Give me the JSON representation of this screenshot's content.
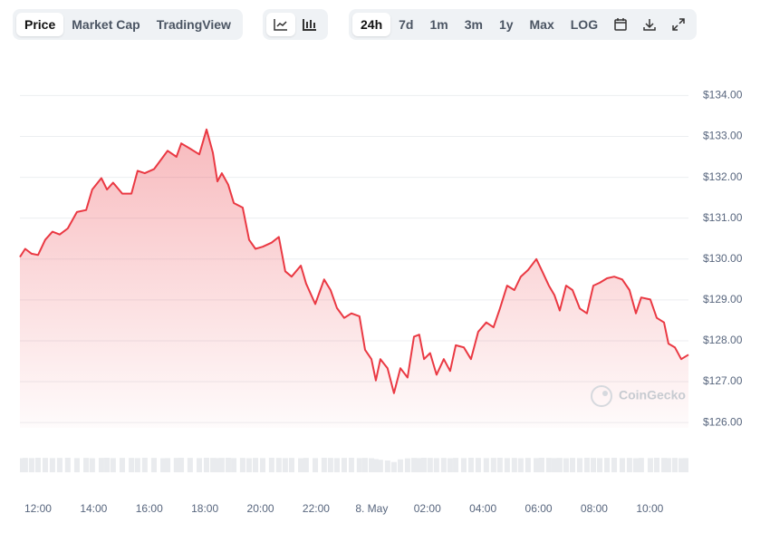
{
  "toolbar": {
    "views": [
      "Price",
      "Market Cap",
      "TradingView"
    ],
    "ranges": [
      "24h",
      "7d",
      "1m",
      "3m",
      "1y",
      "Max",
      "LOG"
    ]
  },
  "chart_data": {
    "type": "area",
    "watermark": "CoinGecko",
    "x": [
      11.35,
      11.54,
      11.77,
      12.0,
      12.26,
      12.52,
      12.78,
      13.07,
      13.4,
      13.73,
      13.95,
      14.28,
      14.48,
      14.7,
      15.03,
      15.36,
      15.58,
      15.84,
      16.17,
      16.5,
      16.66,
      16.98,
      17.15,
      17.47,
      17.8,
      18.06,
      18.29,
      18.45,
      18.61,
      18.84,
      19.04,
      19.36,
      19.59,
      19.82,
      20.08,
      20.4,
      20.66,
      20.89,
      21.12,
      21.45,
      21.64,
      21.97,
      22.29,
      22.52,
      22.75,
      23.01,
      23.27,
      23.56,
      23.76,
      23.99,
      24.15,
      24.31,
      24.57,
      24.8,
      25.03,
      25.29,
      25.52,
      25.71,
      25.88,
      26.1,
      26.33,
      26.59,
      26.82,
      27.02,
      27.31,
      27.57,
      27.83,
      28.12,
      28.38,
      28.61,
      28.87,
      29.13,
      29.36,
      29.62,
      29.92,
      30.11,
      30.37,
      30.57,
      30.76,
      30.99,
      31.22,
      31.48,
      31.74,
      31.97,
      32.2,
      32.46,
      32.72,
      33.01,
      33.27,
      33.5,
      33.69,
      34.02,
      34.25,
      34.51,
      34.67,
      34.9,
      35.13,
      35.39
    ],
    "series": [
      {
        "color": "#ea3943",
        "values": [
          130.05,
          130.25,
          130.13,
          130.1,
          130.47,
          130.67,
          130.6,
          130.75,
          131.15,
          131.2,
          131.7,
          131.98,
          131.7,
          131.87,
          131.6,
          131.6,
          132.16,
          132.1,
          132.2,
          132.5,
          132.65,
          132.5,
          132.83,
          132.7,
          132.56,
          133.17,
          132.6,
          131.9,
          132.1,
          131.82,
          131.37,
          131.26,
          130.47,
          130.25,
          130.3,
          130.4,
          130.54,
          129.7,
          129.57,
          129.84,
          129.4,
          128.9,
          129.5,
          129.24,
          128.8,
          128.56,
          128.67,
          128.6,
          127.78,
          127.55,
          127.03,
          127.55,
          127.33,
          126.72,
          127.33,
          127.1,
          128.1,
          128.15,
          127.55,
          127.7,
          127.17,
          127.55,
          127.26,
          127.89,
          127.84,
          127.55,
          128.22,
          128.45,
          128.33,
          128.79,
          129.35,
          129.24,
          129.57,
          129.73,
          130.0,
          129.73,
          129.35,
          129.12,
          128.74,
          129.35,
          129.24,
          128.79,
          128.67,
          129.35,
          129.42,
          129.53,
          129.57,
          129.5,
          129.24,
          128.67,
          129.06,
          129.01,
          128.56,
          128.45,
          127.93,
          127.84,
          127.55,
          127.66
        ]
      }
    ],
    "volume": {
      "color": "#e9ebee",
      "values": [
        96,
        98,
        97,
        99,
        98,
        97,
        98,
        99,
        97,
        98,
        96,
        98,
        99,
        97,
        98,
        98,
        97,
        99,
        98,
        96,
        97,
        98,
        99,
        98,
        97,
        99,
        98,
        97,
        98,
        99,
        97,
        98,
        96,
        98,
        97,
        99,
        98,
        97,
        98,
        96,
        98,
        97,
        99,
        98,
        97,
        98,
        99,
        97,
        98,
        96,
        90,
        85,
        80,
        70,
        88,
        95,
        98,
        97,
        99,
        98,
        97,
        98,
        96,
        98,
        97,
        99,
        98,
        97,
        98,
        99,
        97,
        98,
        96,
        98,
        97,
        99,
        98,
        97,
        98,
        96,
        98,
        97,
        99,
        98,
        97,
        98,
        99,
        97,
        98,
        96,
        98,
        97,
        99,
        98,
        97,
        98,
        96,
        97
      ]
    },
    "xlim": [
      11.35,
      35.39
    ],
    "xticks": [
      {
        "value": 12,
        "label": "12:00"
      },
      {
        "value": 14,
        "label": "14:00"
      },
      {
        "value": 16,
        "label": "16:00"
      },
      {
        "value": 18,
        "label": "18:00"
      },
      {
        "value": 20,
        "label": "20:00"
      },
      {
        "value": 22,
        "label": "22:00"
      },
      {
        "value": 24,
        "label": "8. May"
      },
      {
        "value": 26,
        "label": "02:00"
      },
      {
        "value": 28,
        "label": "04:00"
      },
      {
        "value": 30,
        "label": "06:00"
      },
      {
        "value": 32,
        "label": "08:00"
      },
      {
        "value": 34,
        "label": "10:00"
      }
    ],
    "ylim": [
      125.87,
      134.63
    ],
    "yticks": [
      {
        "value": 126,
        "label": "$126.00"
      },
      {
        "value": 127,
        "label": "$127.00"
      },
      {
        "value": 128,
        "label": "$128.00"
      },
      {
        "value": 129,
        "label": "$129.00"
      },
      {
        "value": 130,
        "label": "$130.00"
      },
      {
        "value": 131,
        "label": "$131.00"
      },
      {
        "value": 132,
        "label": "$132.00"
      },
      {
        "value": 133,
        "label": "$133.00"
      },
      {
        "value": 134,
        "label": "$134.00"
      }
    ],
    "grid": true
  }
}
